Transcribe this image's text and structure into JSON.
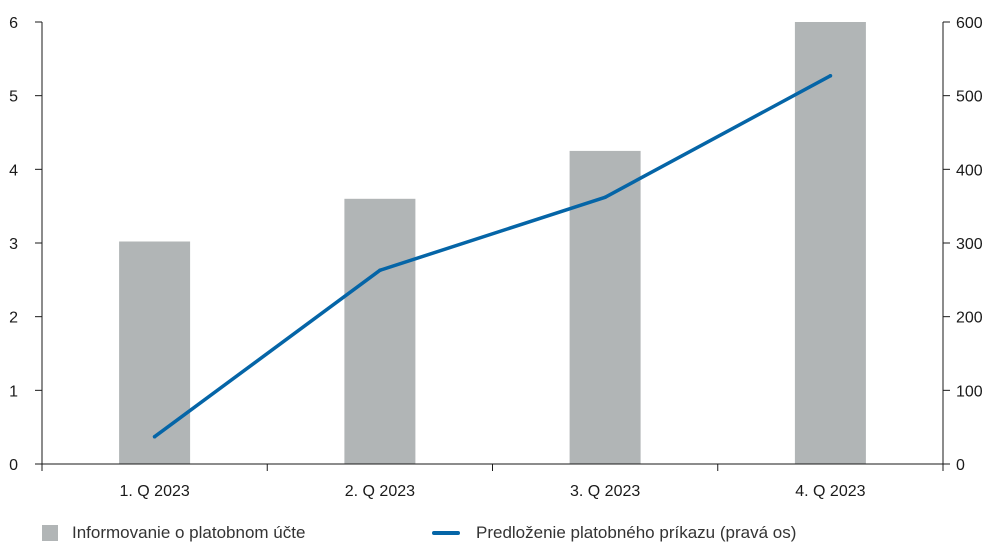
{
  "chart_data": {
    "type": "bar",
    "categories": [
      "1. Q 2023",
      "2. Q 2023",
      "3. Q 2023",
      "4. Q 2023"
    ],
    "series": [
      {
        "name": "Informovanie o platobnom účte",
        "type": "bar",
        "axis": "left",
        "values": [
          3.02,
          3.6,
          4.25,
          6.0
        ],
        "color": "#b1b5b6"
      },
      {
        "name": "Predloženie platobného príkazu (pravá os)",
        "type": "line",
        "axis": "right",
        "values": [
          37,
          263,
          362,
          527
        ],
        "color": "#0565a7"
      }
    ],
    "y_left": {
      "ylim": [
        0,
        6
      ],
      "ticks": [
        "0",
        "1",
        "2",
        "3",
        "4",
        "5",
        "6"
      ]
    },
    "y_right": {
      "ylim": [
        0,
        600
      ],
      "ticks": [
        "0",
        "100",
        "200",
        "300",
        "400",
        "500",
        "600"
      ]
    },
    "grid": false,
    "legend_position": "bottom-left"
  }
}
